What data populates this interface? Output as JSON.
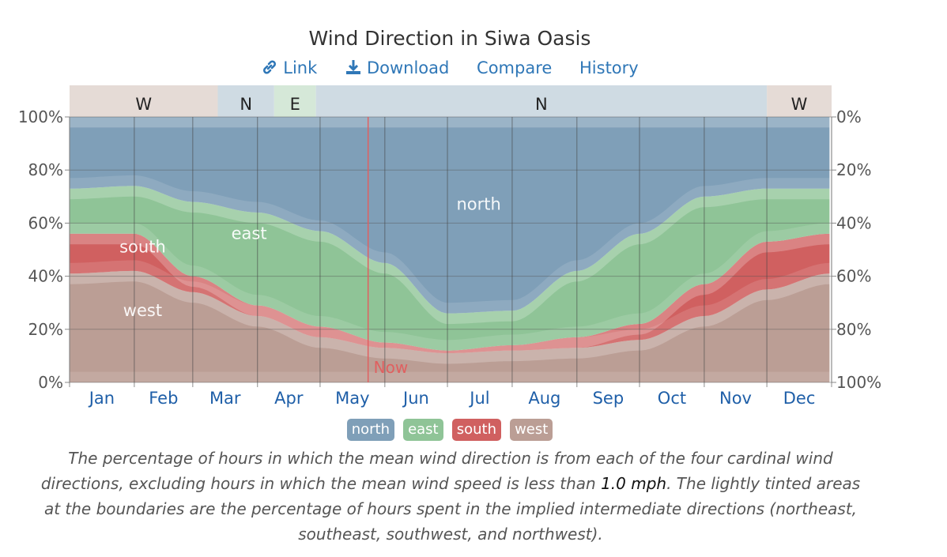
{
  "title": "Wind Direction in Siwa Oasis",
  "links": [
    {
      "label": "Link",
      "icon": "link-icon"
    },
    {
      "label": "Download",
      "icon": "download-icon"
    },
    {
      "label": "Compare",
      "icon": ""
    },
    {
      "label": "History",
      "icon": ""
    }
  ],
  "caption": {
    "part1": "The percentage of hours in which the mean wind direction is from each of the four cardinal wind directions, excluding hours in which the mean wind speed is less than ",
    "value": "1.0 mph",
    "part2": ". The lightly tinted areas at the boundaries are the percentage of hours spent in the implied intermediate directions (northeast, southeast, southwest, and northwest)."
  },
  "colors": {
    "north": "#7f9fb8",
    "east": "#8fc497",
    "south": "#d06060",
    "west": "#bb9e95",
    "band_W": "#e5dbd6",
    "band_N": "#cfdbe3",
    "band_E": "#d5e8d8",
    "now": "#e06060",
    "link": "#2f77b7",
    "month": "#1f5fa8"
  },
  "chart_data": {
    "type": "area",
    "months": [
      "Jan",
      "Feb",
      "Mar",
      "Apr",
      "May",
      "Jun",
      "Jul",
      "Aug",
      "Sep",
      "Oct",
      "Nov",
      "Dec"
    ],
    "x_days": [
      1,
      32,
      60,
      91,
      121,
      152,
      182,
      213,
      244,
      274,
      305,
      335,
      365
    ],
    "series": [
      {
        "name": "west",
        "values": [
          41,
          42,
          34,
          25,
          17,
          13,
          11,
          12,
          13,
          16,
          25,
          35,
          41
        ]
      },
      {
        "name": "south",
        "values": [
          15,
          14,
          6,
          4,
          4,
          2,
          1,
          2,
          4,
          6,
          12,
          18,
          15
        ]
      },
      {
        "name": "east",
        "values": [
          17,
          18,
          28,
          35,
          36,
          30,
          14,
          13,
          25,
          34,
          33,
          20,
          17
        ]
      },
      {
        "name": "north",
        "values": [
          27,
          26,
          32,
          36,
          43,
          55,
          74,
          73,
          58,
          44,
          30,
          27,
          27
        ]
      }
    ],
    "ylabels_left": [
      "0%",
      "20%",
      "40%",
      "60%",
      "80%",
      "100%"
    ],
    "ylabels_right": [
      "100%",
      "80%",
      "60%",
      "40%",
      "20%",
      "0%"
    ],
    "ylim": [
      0,
      100
    ],
    "bands": [
      {
        "label": "W",
        "start": 1,
        "end": 72,
        "dir": "W"
      },
      {
        "label": "N",
        "start": 72,
        "end": 99,
        "dir": "N"
      },
      {
        "label": "E",
        "start": 99,
        "end": 119,
        "dir": "E"
      },
      {
        "label": "N",
        "start": 119,
        "end": 335,
        "dir": "N"
      },
      {
        "label": "W",
        "start": 335,
        "end": 366,
        "dir": "W"
      }
    ],
    "area_labels": [
      {
        "text": "north",
        "day": 197,
        "value": 65
      },
      {
        "text": "east",
        "day": 87,
        "value": 54
      },
      {
        "text": "south",
        "day": 36,
        "value": 49
      },
      {
        "text": "west",
        "day": 36,
        "value": 25
      }
    ],
    "now": {
      "label": "Now",
      "day": 144
    },
    "legend": [
      "north",
      "east",
      "south",
      "west"
    ]
  }
}
